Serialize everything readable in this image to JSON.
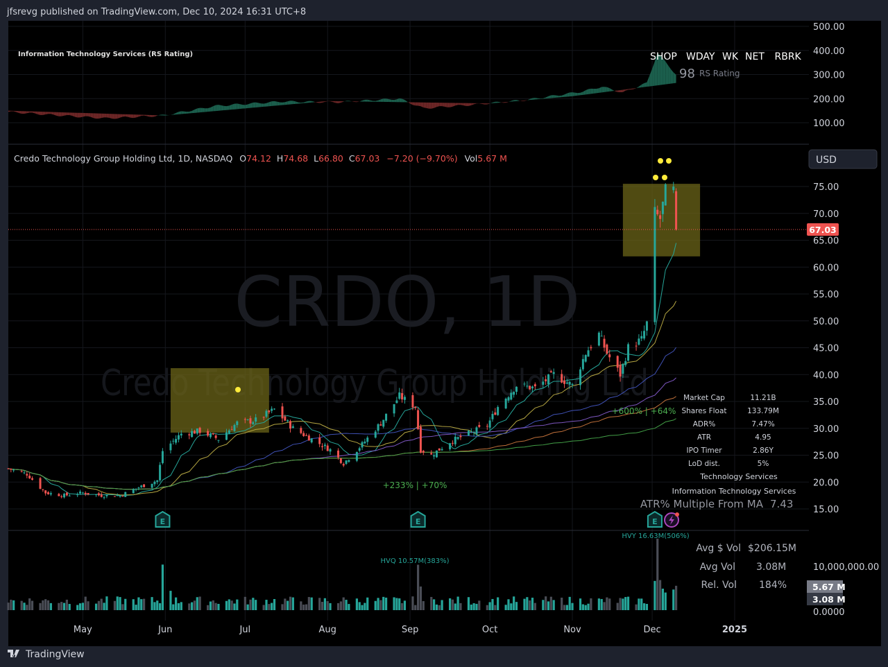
{
  "header": {
    "published": "jfsrevg published on TradingView.com, Dec 10, 2024 16:31 UTC+8"
  },
  "footer": {
    "brand": "TradingView"
  },
  "colors": {
    "up": "#26a69a",
    "down": "#ef5350",
    "bg": "#000000",
    "frame": "#1e222d",
    "box": "#6b6418",
    "dot": "#ffeb3b"
  },
  "rs_panel": {
    "title": "Information Technology Services (RS Rating)",
    "tickers": [
      "SHOP",
      "WDAY",
      "WK",
      "NET",
      "RBRK"
    ],
    "rs_label": "RS Rating",
    "rs_value": "98",
    "axis": [
      "500.00",
      "400.00",
      "300.00",
      "200.00",
      "100.00"
    ]
  },
  "legend": {
    "name": "Credo Technology Group Holding Ltd, 1D, NASDAQ",
    "o_label": "O",
    "o": "74.12",
    "h_label": "H",
    "h": "74.68",
    "l_label": "L",
    "l": "66.80",
    "c_label": "C",
    "c": "67.03",
    "change": "−7.20 (−9.70%)",
    "vol_label": "Vol",
    "vol": "5.67 M"
  },
  "currency": "USD",
  "watermark": {
    "symbol": "CRDO, 1D",
    "name": "Credo Technology Group Holding Ltd"
  },
  "last_price": "67.03",
  "annotations": {
    "gain1": "+233% | +70%",
    "gain2": "+600% | +64%",
    "hvq": "HVQ 10.57M(383%)",
    "hvy": "HVY 16.63M(506%)",
    "earnings": "E"
  },
  "stats": {
    "rows": [
      {
        "label": "Market Cap",
        "value": "11.21B"
      },
      {
        "label": "Shares Float",
        "value": "133.79M"
      },
      {
        "label": "ADR%",
        "value": "7.47%"
      },
      {
        "label": "ATR",
        "value": "4.95"
      },
      {
        "label": "IPO Timer",
        "value": "2.86Y"
      },
      {
        "label": "LoD dist.",
        "value": "5%"
      }
    ],
    "sector": "Technology Services",
    "industry": "Information Technology Services",
    "atr_multiple_label": "ATR% Multiple From MA",
    "atr_multiple_value": "7.43"
  },
  "volume_stats": {
    "avg_dollar_label": "Avg $ Vol",
    "avg_dollar": "$206.15M",
    "avg_vol_label": "Avg Vol",
    "avg_vol": "3.08M",
    "rel_vol_label": "Rel. Vol",
    "rel_vol": "184%",
    "axis_top": "10,000,000.00",
    "axis_zero": "0.0000",
    "badge_vol": "5.67 M",
    "badge_avg": "3.08 M"
  },
  "chart_data": {
    "type": "candlestick",
    "title": "Credo Technology Group Holding Ltd, 1D, NASDAQ",
    "x_ticks": [
      {
        "label": "May",
        "date": "2024-05-01"
      },
      {
        "label": "Jun",
        "date": "2024-06-01"
      },
      {
        "label": "Jul",
        "date": "2024-07-01"
      },
      {
        "label": "Aug",
        "date": "2024-08-01"
      },
      {
        "label": "Sep",
        "date": "2024-09-01"
      },
      {
        "label": "Oct",
        "date": "2024-10-01"
      },
      {
        "label": "Nov",
        "date": "2024-11-01"
      },
      {
        "label": "Dec",
        "date": "2024-12-01"
      },
      {
        "label": "2025",
        "date": "2025-01-01"
      }
    ],
    "x_range": [
      "2024-04-03",
      "2025-02-01"
    ],
    "y_ticks": [
      "75.00",
      "70.00",
      "65.00",
      "60.00",
      "55.00",
      "50.00",
      "45.00",
      "40.00",
      "35.00",
      "30.00",
      "25.00",
      "20.00",
      "15.00"
    ],
    "y_range": [
      15,
      75
    ],
    "close_anchors": [
      {
        "d": "2024-04-03",
        "c": 22.5
      },
      {
        "d": "2024-04-10",
        "c": 21.5
      },
      {
        "d": "2024-04-17",
        "c": 18
      },
      {
        "d": "2024-04-24",
        "c": 17.5
      },
      {
        "d": "2024-05-01",
        "c": 18
      },
      {
        "d": "2024-05-08",
        "c": 17.5
      },
      {
        "d": "2024-05-15",
        "c": 17.5
      },
      {
        "d": "2024-05-22",
        "c": 19
      },
      {
        "d": "2024-05-29",
        "c": 20.3
      },
      {
        "d": "2024-05-31",
        "c": 25.8
      },
      {
        "d": "2024-06-07",
        "c": 29
      },
      {
        "d": "2024-06-14",
        "c": 29.5
      },
      {
        "d": "2024-06-21",
        "c": 28
      },
      {
        "d": "2024-06-28",
        "c": 31
      },
      {
        "d": "2024-07-05",
        "c": 31.5
      },
      {
        "d": "2024-07-12",
        "c": 33.5
      },
      {
        "d": "2024-07-19",
        "c": 30
      },
      {
        "d": "2024-07-26",
        "c": 28
      },
      {
        "d": "2024-08-02",
        "c": 26
      },
      {
        "d": "2024-08-07",
        "c": 23.5
      },
      {
        "d": "2024-08-14",
        "c": 27
      },
      {
        "d": "2024-08-21",
        "c": 31
      },
      {
        "d": "2024-08-28",
        "c": 36
      },
      {
        "d": "2024-09-03",
        "c": 34
      },
      {
        "d": "2024-09-05",
        "c": 26
      },
      {
        "d": "2024-09-09",
        "c": 25
      },
      {
        "d": "2024-09-16",
        "c": 27.5
      },
      {
        "d": "2024-09-23",
        "c": 29
      },
      {
        "d": "2024-09-30",
        "c": 30.5
      },
      {
        "d": "2024-10-04",
        "c": 34
      },
      {
        "d": "2024-10-11",
        "c": 38
      },
      {
        "d": "2024-10-18",
        "c": 37.5
      },
      {
        "d": "2024-10-25",
        "c": 40
      },
      {
        "d": "2024-11-01",
        "c": 38
      },
      {
        "d": "2024-11-06",
        "c": 44
      },
      {
        "d": "2024-11-11",
        "c": 47.5
      },
      {
        "d": "2024-11-14",
        "c": 44
      },
      {
        "d": "2024-11-19",
        "c": 40
      },
      {
        "d": "2024-11-22",
        "c": 45
      },
      {
        "d": "2024-11-27",
        "c": 46.5
      },
      {
        "d": "2024-11-29",
        "c": 49.5
      },
      {
        "d": "2024-12-02",
        "c": 70
      },
      {
        "d": "2024-12-04",
        "c": 69
      },
      {
        "d": "2024-12-06",
        "c": 74
      },
      {
        "d": "2024-12-09",
        "c": 74.12
      },
      {
        "d": "2024-12-10",
        "c": 67.03
      }
    ],
    "last_candle": {
      "o": 74.12,
      "h": 74.68,
      "l": 66.8,
      "c": 67.03
    },
    "volume": {
      "unit": "M",
      "base": 2.3,
      "spikes": [
        {
          "d": "2024-05-31",
          "v": 10.6
        },
        {
          "d": "2024-06-03",
          "v": 4.5
        },
        {
          "d": "2024-09-04",
          "v": 10.57
        },
        {
          "d": "2024-09-05",
          "v": 5.5
        },
        {
          "d": "2024-12-02",
          "v": 6.8
        },
        {
          "d": "2024-12-03",
          "v": 16.63
        },
        {
          "d": "2024-12-04",
          "v": 7.0
        },
        {
          "d": "2024-12-05",
          "v": 5.0
        },
        {
          "d": "2024-12-06",
          "v": 4.1
        },
        {
          "d": "2024-12-09",
          "v": 4.8
        },
        {
          "d": "2024-12-10",
          "v": 5.67
        }
      ]
    },
    "moving_averages": [
      {
        "period": 10,
        "color": "#26a69a"
      },
      {
        "period": 21,
        "color": "#b5a642"
      },
      {
        "period": 50,
        "color": "#3f51b5"
      },
      {
        "period": 80,
        "color": "#7e57c2"
      },
      {
        "period": 120,
        "color": "#c0703a"
      },
      {
        "period": 170,
        "color": "#43a047"
      }
    ],
    "boxes": [
      {
        "from": "2024-06-03",
        "to": "2024-07-10",
        "low": 29.2,
        "high": 41.2
      },
      {
        "from": "2024-11-20",
        "to": "2024-12-19",
        "low": 62,
        "high": 75.5
      }
    ],
    "rs_line": [
      {
        "d": "2024-04-03",
        "v": 145
      },
      {
        "d": "2024-04-20",
        "v": 132
      },
      {
        "d": "2024-05-10",
        "v": 118
      },
      {
        "d": "2024-05-31",
        "v": 130
      },
      {
        "d": "2024-06-20",
        "v": 170
      },
      {
        "d": "2024-07-15",
        "v": 188
      },
      {
        "d": "2024-08-05",
        "v": 185
      },
      {
        "d": "2024-08-28",
        "v": 200
      },
      {
        "d": "2024-09-06",
        "v": 160
      },
      {
        "d": "2024-09-25",
        "v": 175
      },
      {
        "d": "2024-10-15",
        "v": 195
      },
      {
        "d": "2024-11-05",
        "v": 230
      },
      {
        "d": "2024-11-12",
        "v": 250
      },
      {
        "d": "2024-11-20",
        "v": 225
      },
      {
        "d": "2024-11-29",
        "v": 265
      },
      {
        "d": "2024-12-03",
        "v": 390
      },
      {
        "d": "2024-12-10",
        "v": 300
      }
    ],
    "rs_baseline": [
      {
        "d": "2024-04-03",
        "v": 150
      },
      {
        "d": "2024-06-01",
        "v": 130
      },
      {
        "d": "2024-08-01",
        "v": 190
      },
      {
        "d": "2024-10-01",
        "v": 180
      },
      {
        "d": "2024-11-01",
        "v": 210
      },
      {
        "d": "2024-12-10",
        "v": 265
      }
    ]
  }
}
